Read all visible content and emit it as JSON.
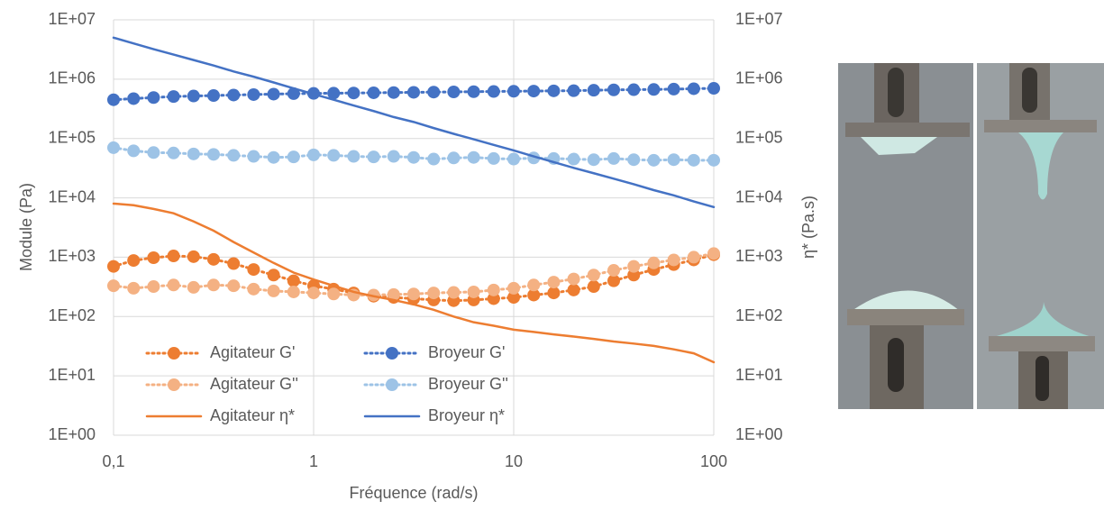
{
  "chart_data": {
    "type": "line",
    "x_label": "Fréquence (rad/s)",
    "y_label": "Module (Pa)",
    "y2_label": "η* (Pa.s)",
    "x_log": true,
    "y_log": true,
    "grid": true,
    "legend": "lower-left",
    "x": [
      0.1,
      0.1259,
      0.1585,
      0.1995,
      0.2512,
      0.3162,
      0.3981,
      0.5012,
      0.631,
      0.7943,
      1,
      1.259,
      1.585,
      1.995,
      2.512,
      3.162,
      3.981,
      5.012,
      6.31,
      7.943,
      10,
      12.59,
      15.85,
      19.95,
      25.12,
      31.62,
      39.81,
      50.12,
      63.1,
      79.43,
      100
    ],
    "xlim": [
      0.1,
      100
    ],
    "xticks": [
      {
        "value": 0.1,
        "label": "0,1"
      },
      1,
      10,
      100
    ],
    "ylim": [
      1,
      10000000
    ],
    "yticks": [
      {
        "value": 1,
        "label": "1E+00"
      },
      {
        "value": 10,
        "label": "1E+01"
      },
      {
        "value": 100,
        "label": "1E+02"
      },
      {
        "value": 1000,
        "label": "1E+03"
      },
      {
        "value": 10000,
        "label": "1E+04"
      },
      {
        "value": 100000,
        "label": "1E+05"
      },
      {
        "value": 1000000,
        "label": "1E+06"
      },
      {
        "value": 10000000,
        "label": "1E+07"
      }
    ],
    "y2lim": [
      1,
      10000000
    ],
    "y2ticks": [
      {
        "value": 1,
        "label": "1E+00"
      },
      {
        "value": 10,
        "label": "1E+01"
      },
      {
        "value": 100,
        "label": "1E+02"
      },
      {
        "value": 1000,
        "label": "1E+03"
      },
      {
        "value": 10000,
        "label": "1E+04"
      },
      {
        "value": 100000,
        "label": "1E+05"
      },
      {
        "value": 1000000,
        "label": "1E+06"
      },
      {
        "value": 10000000,
        "label": "1E+07"
      }
    ],
    "series": [
      {
        "name": "Agitateur G'",
        "color": "#ed7d31",
        "style": "dotted-markers",
        "axis": "y",
        "values": [
          700,
          880,
          980,
          1050,
          1020,
          920,
          780,
          620,
          500,
          400,
          330,
          290,
          250,
          220,
          210,
          200,
          190,
          185,
          190,
          200,
          210,
          230,
          250,
          280,
          320,
          400,
          500,
          620,
          750,
          900,
          1100
        ]
      },
      {
        "name": "Broyeur G'",
        "color": "#4472c4",
        "style": "dotted-markers",
        "axis": "y",
        "values": [
          450000,
          470000,
          490000,
          510000,
          520000,
          530000,
          540000,
          550000,
          560000,
          570000,
          575000,
          580000,
          585000,
          590000,
          595000,
          600000,
          605000,
          610000,
          615000,
          620000,
          625000,
          630000,
          635000,
          640000,
          650000,
          660000,
          665000,
          670000,
          680000,
          690000,
          700000
        ]
      },
      {
        "name": "Agitateur G''",
        "color": "#f4b183",
        "style": "dotted-markers",
        "axis": "y",
        "values": [
          330,
          300,
          320,
          340,
          310,
          340,
          330,
          290,
          270,
          260,
          250,
          240,
          230,
          230,
          235,
          240,
          250,
          255,
          260,
          280,
          300,
          340,
          380,
          430,
          500,
          600,
          700,
          800,
          900,
          1000,
          1150
        ]
      },
      {
        "name": "Broyeur G''",
        "color": "#9dc3e6",
        "style": "dotted-markers",
        "axis": "y",
        "values": [
          70000,
          62000,
          58000,
          57000,
          55000,
          54000,
          52000,
          50000,
          48000,
          49000,
          53000,
          52000,
          50000,
          49000,
          50000,
          48000,
          45000,
          47000,
          48000,
          46000,
          45000,
          47000,
          46000,
          45000,
          44000,
          46000,
          44000,
          43000,
          44000,
          43000,
          43000
        ]
      },
      {
        "name": "Agitateur η*",
        "color": "#ed7d31",
        "style": "solid",
        "axis": "y2",
        "values": [
          8000,
          7500,
          6500,
          5500,
          4000,
          2800,
          1800,
          1200,
          800,
          550,
          420,
          330,
          260,
          220,
          190,
          160,
          130,
          100,
          80,
          70,
          60,
          55,
          50,
          46,
          42,
          38,
          35,
          32,
          28,
          24,
          17
        ]
      },
      {
        "name": "Broyeur η*",
        "color": "#4472c4",
        "style": "solid",
        "axis": "y2",
        "values": [
          5000000,
          4000000,
          3200000,
          2600000,
          2100000,
          1700000,
          1350000,
          1100000,
          880000,
          700000,
          560000,
          450000,
          360000,
          290000,
          230000,
          190000,
          150000,
          120000,
          97000,
          78000,
          63000,
          50000,
          40000,
          32000,
          26000,
          21000,
          17000,
          13500,
          11000,
          8700,
          7000
        ]
      }
    ]
  }
}
